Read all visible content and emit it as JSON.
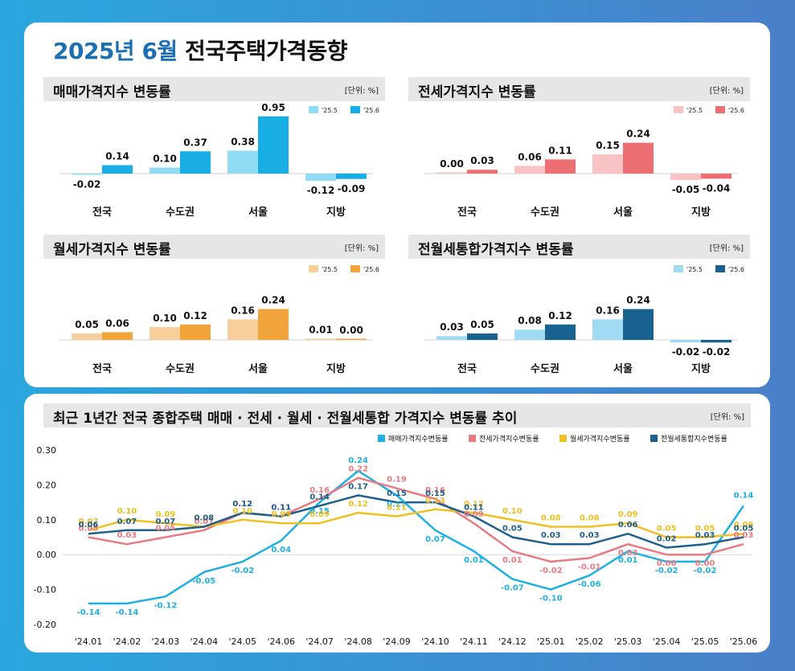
{
  "title": {
    "year_month": "2025년 6월",
    "rest": "전국주택가격동향"
  },
  "unit_label": "[단위: %]",
  "regions": [
    "전국",
    "수도권",
    "서울",
    "지방"
  ],
  "legend_prev": "'25.5",
  "legend_curr": "'25.6",
  "panels": [
    {
      "id": "sale",
      "title": "매매가격지수 변동률",
      "color_prev": "#8fdcf4",
      "color_curr": "#19ade6",
      "prev": [
        -0.02,
        0.1,
        0.38,
        -0.12
      ],
      "curr": [
        0.14,
        0.37,
        0.95,
        -0.09
      ],
      "prev_labels": [
        "-0.02",
        "0.10",
        "0.38",
        "-0.12"
      ],
      "curr_labels": [
        "0.14",
        "0.37",
        "0.95",
        "-0.09"
      ]
    },
    {
      "id": "jeonse",
      "title": "전세가격지수 변동률",
      "color_prev": "#f7c3c5",
      "color_curr": "#ec7073",
      "prev": [
        0.0,
        0.06,
        0.15,
        -0.05
      ],
      "curr": [
        0.03,
        0.11,
        0.24,
        -0.04
      ],
      "prev_labels": [
        "0.00",
        "0.06",
        "0.15",
        "-0.05"
      ],
      "curr_labels": [
        "0.03",
        "0.11",
        "0.24",
        "-0.04"
      ]
    },
    {
      "id": "monthly",
      "title": "월세가격지수 변동률",
      "color_prev": "#f8cf9b",
      "color_curr": "#f1a43a",
      "prev": [
        0.05,
        0.1,
        0.16,
        0.01
      ],
      "curr": [
        0.06,
        0.12,
        0.24,
        0.0
      ],
      "prev_labels": [
        "0.05",
        "0.10",
        "0.16",
        "0.01"
      ],
      "curr_labels": [
        "0.06",
        "0.12",
        "0.24",
        "0.00"
      ]
    },
    {
      "id": "combined",
      "title": "전월세통합가격지수 변동률",
      "color_prev": "#9fdcf3",
      "color_curr": "#18628f",
      "prev": [
        0.03,
        0.08,
        0.16,
        -0.02
      ],
      "curr": [
        0.05,
        0.12,
        0.24,
        -0.02
      ],
      "prev_labels": [
        "0.03",
        "0.08",
        "0.16",
        "-0.02"
      ],
      "curr_labels": [
        "0.05",
        "0.12",
        "0.24",
        "-0.02"
      ]
    }
  ],
  "chart_data": {
    "type": "line",
    "title": "최근 1년간 전국 종합주택 매매 · 전세 · 월세 · 전월세통합 가격지수 변동률 추이",
    "unit": "[단위: %]",
    "ylim": [
      -0.2,
      0.3
    ],
    "yticks": [
      "0.30",
      "0.20",
      "0.10",
      "0.00",
      "-0.10",
      "-0.20"
    ],
    "ytick_values": [
      0.3,
      0.2,
      0.1,
      0.0,
      -0.1,
      -0.2
    ],
    "grid": false,
    "legend_position": "top-right",
    "x": [
      "'24.01",
      "'24.02",
      "'24.03",
      "'24.04",
      "'24.05",
      "'24.06",
      "'24.07",
      "'24.08",
      "'24.09",
      "'24.10",
      "'24.11",
      "'24.12",
      "'25.01",
      "'25.02",
      "'25.03",
      "'25.04",
      "'25.05",
      "'25.06"
    ],
    "series": [
      {
        "name": "매매가격지수변동률",
        "color": "#1fb0e3",
        "values": [
          -0.14,
          -0.14,
          -0.12,
          -0.05,
          -0.02,
          0.04,
          0.15,
          0.24,
          0.17,
          0.07,
          0.01,
          -0.07,
          -0.1,
          -0.06,
          0.01,
          -0.02,
          -0.02,
          0.14
        ],
        "labels": [
          "-0.14",
          "-0.14",
          "-0.12",
          "-0.05",
          "-0.02",
          "0.04",
          "0.15",
          "0.24",
          "0.17",
          "0.07",
          "0.01",
          "-0.07",
          "-0.10",
          "-0.06",
          "0.01",
          "-0.02",
          "-0.02",
          "0.14"
        ]
      },
      {
        "name": "전세가격지수변동률",
        "color": "#e97a7f",
        "values": [
          0.05,
          0.03,
          0.05,
          0.07,
          0.12,
          0.11,
          0.16,
          0.22,
          0.19,
          0.16,
          0.09,
          0.01,
          -0.02,
          -0.01,
          0.03,
          0.0,
          0.0,
          0.03
        ],
        "labels": [
          "0.05",
          "0.03",
          "0.05",
          "0.07",
          "0.12",
          "0.11",
          "0.16",
          "0.22",
          "0.19",
          "0.16",
          "0.09",
          "0.01",
          "-0.02",
          "-0.01",
          "0.03",
          "0.00",
          "0.00",
          "0.03"
        ]
      },
      {
        "name": "월세가격지수변동률",
        "color": "#f0c020",
        "values": [
          0.07,
          0.1,
          0.09,
          0.08,
          0.1,
          0.09,
          0.09,
          0.12,
          0.11,
          0.13,
          0.12,
          0.1,
          0.08,
          0.08,
          0.09,
          0.05,
          0.05,
          0.06
        ],
        "labels": [
          "0.07",
          "0.10",
          "0.09",
          "0.08",
          "0.10",
          "0.09",
          "0.09",
          "0.12",
          "0.11",
          "0.13",
          "0.12",
          "0.10",
          "0.08",
          "0.08",
          "0.09",
          "0.05",
          "0.05",
          "0.06"
        ]
      },
      {
        "name": "전월세통합지수변동률",
        "color": "#1e5f8c",
        "values": [
          0.06,
          0.07,
          0.07,
          0.08,
          0.12,
          0.11,
          0.14,
          0.17,
          0.15,
          0.15,
          0.11,
          0.05,
          0.03,
          0.03,
          0.06,
          0.02,
          0.03,
          0.05
        ],
        "labels": [
          "0.06",
          "0.07",
          "0.07",
          "0.08",
          "0.12",
          "0.11",
          "0.14",
          "0.17",
          "0.15",
          "0.15",
          "0.11",
          "0.05",
          "0.03",
          "0.03",
          "0.06",
          "0.02",
          "0.03",
          "0.05"
        ]
      }
    ]
  }
}
